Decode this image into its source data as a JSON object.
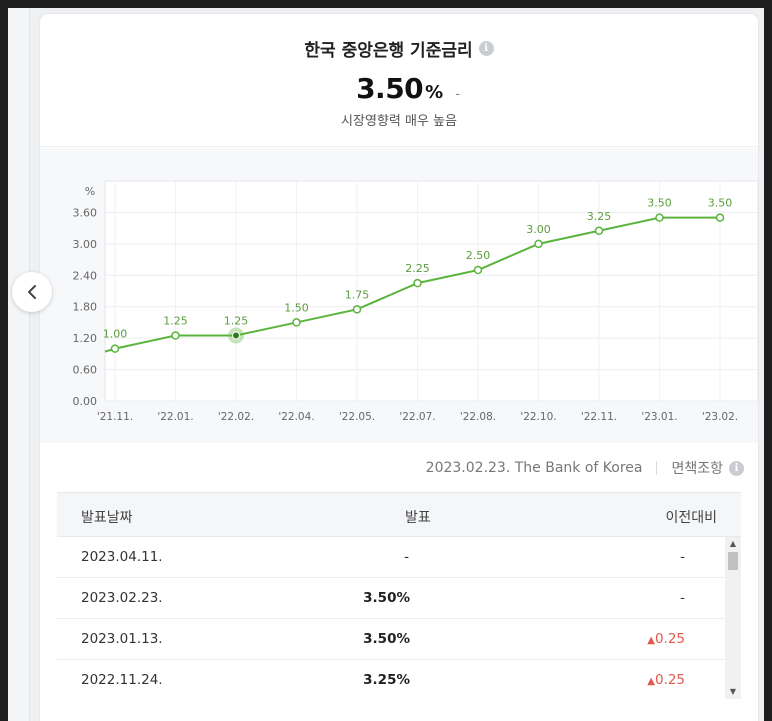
{
  "header": {
    "title": "한국 중앙은행 기준금리",
    "info_icon": "i",
    "rate_value": "3.50",
    "rate_unit": "%",
    "rate_change": "-",
    "subtitle": "시장영향력 매우 높음"
  },
  "chart_data": {
    "type": "line",
    "ylabel": "%",
    "y_ticks": [
      "0.00",
      "0.60",
      "1.20",
      "1.80",
      "2.40",
      "3.00",
      "3.60"
    ],
    "ylim": [
      0,
      4.2
    ],
    "x_ticks": [
      "'21.11.",
      "'22.01.",
      "'22.02.",
      "'22.04.",
      "'22.05.",
      "'22.07.",
      "'22.08.",
      "'22.10.",
      "'22.11.",
      "'23.01.",
      "'23.02."
    ],
    "values": [
      1.0,
      1.25,
      1.25,
      1.5,
      1.75,
      2.25,
      2.5,
      3.0,
      3.25,
      3.5,
      3.5
    ],
    "data_labels": [
      "1.00",
      "1.25",
      "1.25",
      "1.50",
      "1.75",
      "2.25",
      "2.50",
      "3.00",
      "3.25",
      "3.50",
      "3.50"
    ],
    "highlight_index": 2,
    "line_color": "#5ab43c",
    "grid": true
  },
  "source": {
    "date_source": "2023.02.23. The Bank of Korea",
    "disclaimer": "면책조항",
    "info_icon": "i"
  },
  "table": {
    "headers": {
      "date": "발표날짜",
      "value": "발표",
      "change": "이전대비"
    },
    "rows": [
      {
        "date": "2023.04.11.",
        "value": "-",
        "change": "-",
        "direction": "none"
      },
      {
        "date": "2023.02.23.",
        "value": "3.50%",
        "change": "-",
        "direction": "none"
      },
      {
        "date": "2023.01.13.",
        "value": "3.50%",
        "change": "0.25",
        "direction": "up"
      },
      {
        "date": "2022.11.24.",
        "value": "3.25%",
        "change": "0.25",
        "direction": "up"
      }
    ]
  },
  "nav": {
    "prev_icon": "chevron-left-icon"
  },
  "colors": {
    "up": "#e05a4c",
    "line": "#5ab43c"
  }
}
